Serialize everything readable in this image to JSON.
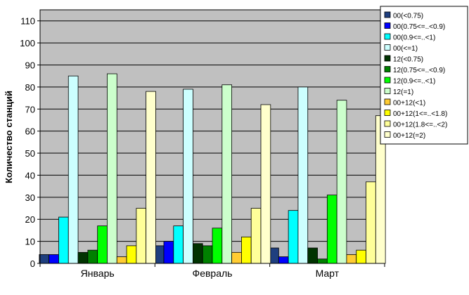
{
  "chart_data": {
    "type": "bar",
    "title": "",
    "xlabel": "",
    "ylabel": "Количество станций",
    "ylim": [
      0,
      115
    ],
    "yticks": [
      0,
      10,
      20,
      30,
      40,
      50,
      60,
      70,
      80,
      90,
      100,
      110
    ],
    "grid": true,
    "legend_position": "top-right",
    "plot_background": "#c0c0c0",
    "categories": [
      "Январь",
      "Февраль",
      "Март"
    ],
    "series": [
      {
        "name": "00(<0.75)",
        "color": "#1f3f7f",
        "values": [
          4,
          8,
          7
        ]
      },
      {
        "name": "00(0.75<=..<0.9)",
        "color": "#0000ff",
        "values": [
          4,
          10,
          3
        ]
      },
      {
        "name": "00(0.9<=..<1)",
        "color": "#00ffff",
        "values": [
          21,
          17,
          24
        ]
      },
      {
        "name": "00(<=1)",
        "color": "#ccffff",
        "values": [
          85,
          79,
          80
        ]
      },
      {
        "name": "12(<0.75)",
        "color": "#003300",
        "values": [
          5,
          9,
          7
        ]
      },
      {
        "name": "12(0.75<=..<0.9)",
        "color": "#008000",
        "values": [
          6,
          8,
          2
        ]
      },
      {
        "name": "12(0.9<=..<1)",
        "color": "#00ff00",
        "values": [
          17,
          16,
          31
        ]
      },
      {
        "name": "12(=1)",
        "color": "#ccffcc",
        "values": [
          86,
          81,
          74
        ]
      },
      {
        "name": "00+12(<1)",
        "color": "#ffcc33",
        "values": [
          3,
          5,
          4
        ]
      },
      {
        "name": "00+12(1<=..<1.8)",
        "color": "#ffff00",
        "values": [
          8,
          12,
          6
        ]
      },
      {
        "name": "00+12(1.8<=..<2)",
        "color": "#ffff99",
        "values": [
          25,
          25,
          37
        ]
      },
      {
        "name": "00+12(=2)",
        "color": "#ffffcc",
        "values": [
          78,
          72,
          67
        ]
      }
    ]
  }
}
